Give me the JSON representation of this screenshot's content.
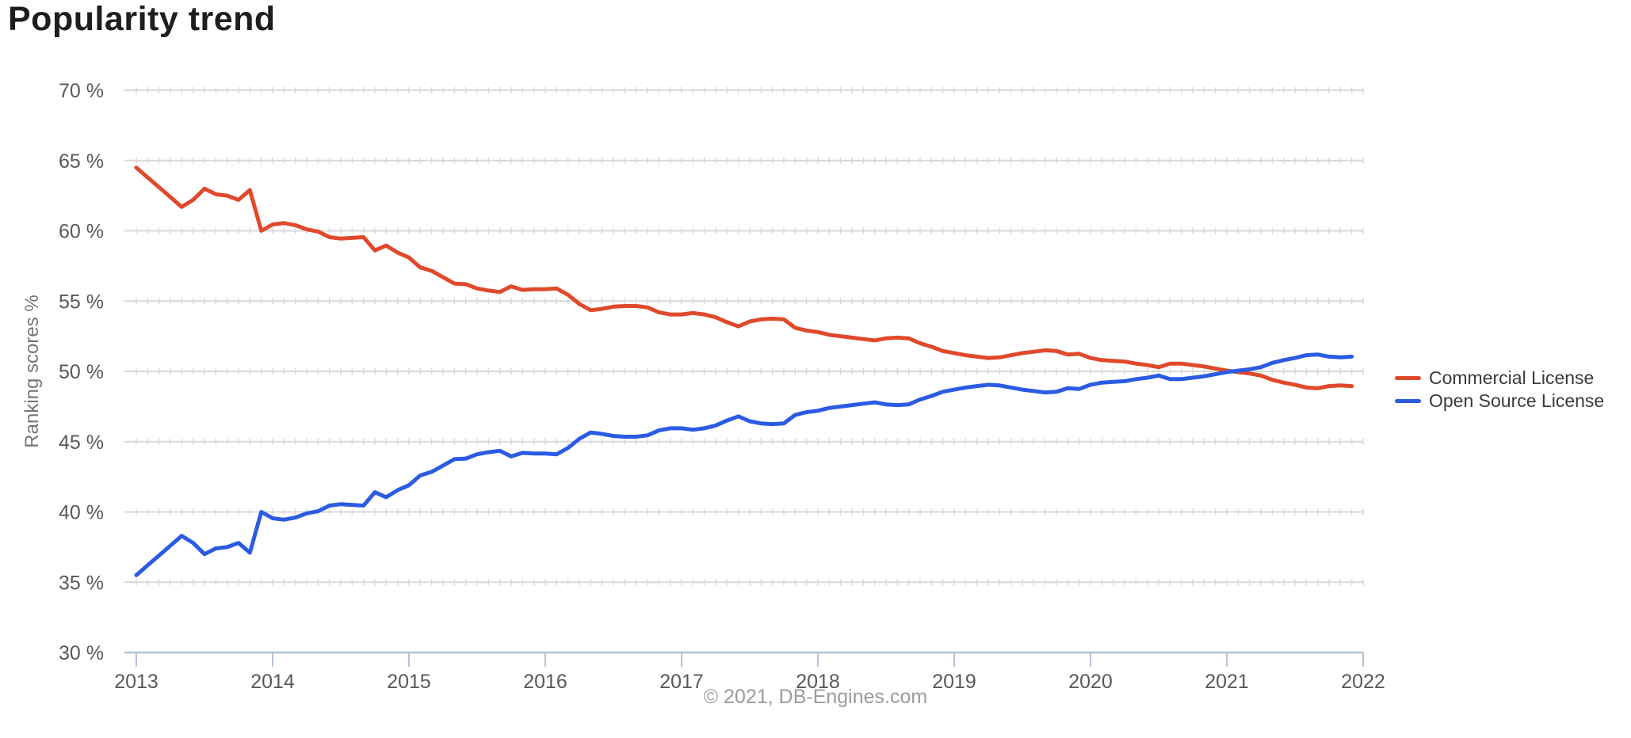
{
  "page": {
    "title": "Popularity trend",
    "footer": "© 2021, DB-Engines.com"
  },
  "chart_data": {
    "type": "line",
    "title": "Popularity trend",
    "xlabel": "",
    "ylabel": "Ranking scores %",
    "ylim": [
      30,
      70
    ],
    "y_tick_step": 5,
    "y_tick_labels": [
      "70 %",
      "65 %",
      "60 %",
      "55 %",
      "50 %",
      "45 %",
      "40 %",
      "35 %",
      "30 %"
    ],
    "x_tick_labels": [
      "2013",
      "2014",
      "2015",
      "2016",
      "2017",
      "2018",
      "2019",
      "2020",
      "2021",
      "2022"
    ],
    "x_start_year": 2013,
    "x_end_year": 2022,
    "points_per_year": 12,
    "grid": true,
    "legend_position": "right",
    "series": [
      {
        "name": "Commercial License",
        "color": "#e0492b",
        "first_month": "Jan 2013",
        "last_month": "Dec 2021",
        "values": [
          64.5,
          63.8,
          63.1,
          62.4,
          61.7,
          62.2,
          63.0,
          62.6,
          62.5,
          62.2,
          62.9,
          60.0,
          60.45,
          60.55,
          60.4,
          60.1,
          59.95,
          59.55,
          59.45,
          59.5,
          59.55,
          58.6,
          58.95,
          58.45,
          58.1,
          57.4,
          57.15,
          56.7,
          56.25,
          56.2,
          55.9,
          55.75,
          55.65,
          56.05,
          55.8,
          55.85,
          55.85,
          55.9,
          55.45,
          54.8,
          54.35,
          54.45,
          54.6,
          54.65,
          54.65,
          54.55,
          54.2,
          54.05,
          54.05,
          54.15,
          54.05,
          53.85,
          53.5,
          53.2,
          53.55,
          53.7,
          53.75,
          53.7,
          53.1,
          52.9,
          52.8,
          52.6,
          52.5,
          52.4,
          52.3,
          52.2,
          52.35,
          52.4,
          52.35,
          52.0,
          51.75,
          51.45,
          51.3,
          51.15,
          51.05,
          50.95,
          51.0,
          51.15,
          51.3,
          51.4,
          51.5,
          51.45,
          51.2,
          51.25,
          50.95,
          50.8,
          50.75,
          50.7,
          50.55,
          50.45,
          50.3,
          50.55,
          50.55,
          50.45,
          50.35,
          50.2,
          50.05,
          49.95,
          49.85,
          49.7,
          49.4,
          49.2,
          49.05,
          48.85,
          48.8,
          48.95,
          49.0,
          48.95
        ]
      },
      {
        "name": "Open Source License",
        "color": "#2b5be2",
        "first_month": "Jan 2013",
        "last_month": "Dec 2021",
        "values": [
          35.5,
          36.2,
          36.9,
          37.6,
          38.3,
          37.8,
          37.0,
          37.4,
          37.5,
          37.8,
          37.1,
          40.0,
          39.55,
          39.45,
          39.6,
          39.9,
          40.05,
          40.45,
          40.55,
          40.5,
          40.45,
          41.4,
          41.05,
          41.55,
          41.9,
          42.6,
          42.85,
          43.3,
          43.75,
          43.8,
          44.1,
          44.25,
          44.35,
          43.95,
          44.2,
          44.15,
          44.15,
          44.1,
          44.55,
          45.2,
          45.65,
          45.55,
          45.4,
          45.35,
          45.35,
          45.45,
          45.8,
          45.95,
          45.95,
          45.85,
          45.95,
          46.15,
          46.5,
          46.8,
          46.45,
          46.3,
          46.25,
          46.3,
          46.9,
          47.1,
          47.2,
          47.4,
          47.5,
          47.6,
          47.7,
          47.8,
          47.65,
          47.6,
          47.65,
          48.0,
          48.25,
          48.55,
          48.7,
          48.85,
          48.95,
          49.05,
          49.0,
          48.85,
          48.7,
          48.6,
          48.5,
          48.55,
          48.8,
          48.75,
          49.05,
          49.2,
          49.25,
          49.3,
          49.45,
          49.55,
          49.7,
          49.45,
          49.45,
          49.55,
          49.65,
          49.8,
          49.95,
          50.05,
          50.15,
          50.3,
          50.6,
          50.8,
          50.95,
          51.15,
          51.2,
          51.05,
          51.0,
          51.05
        ]
      }
    ],
    "style": {
      "gridline_color": "#d9d9d9",
      "axis_color": "#b6c3d7",
      "tick_label_color": "#595959"
    }
  }
}
